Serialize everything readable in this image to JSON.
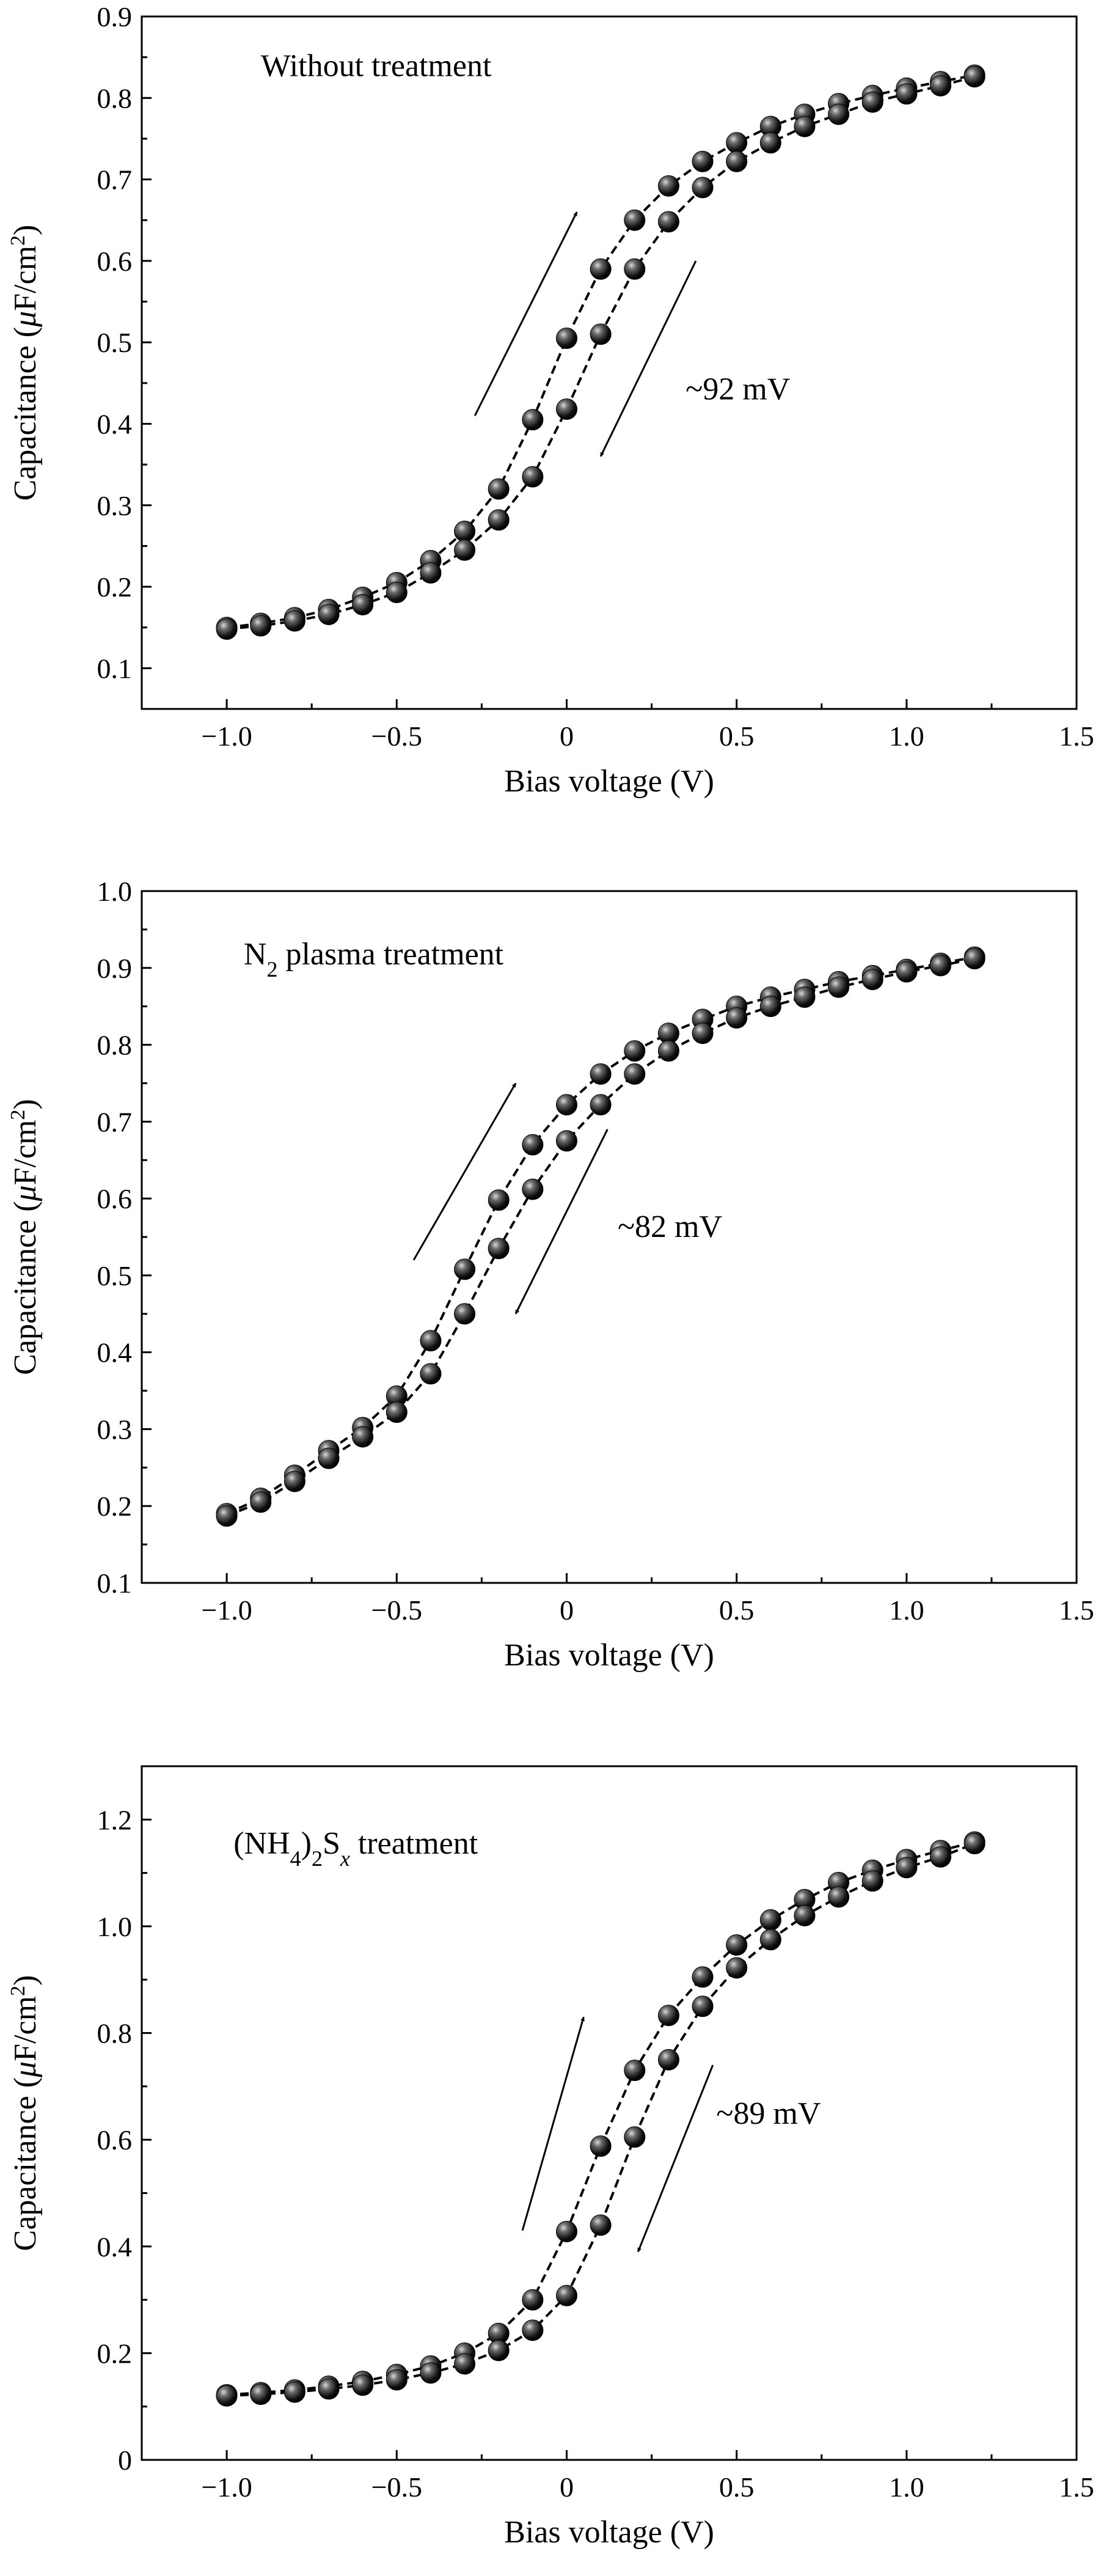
{
  "chart_data": [
    {
      "type": "scatter",
      "title": "Without treatment",
      "xlabel": "Bias voltage (V)",
      "ylabel": "Capacitance (μF/cm²)",
      "xlim": [
        -1.25,
        1.5
      ],
      "ylim": [
        0.05,
        0.9
      ],
      "xticks": [
        -1.0,
        -0.5,
        0,
        0.5,
        1.0,
        1.5
      ],
      "xtick_labels": [
        "−1.0",
        "−0.5",
        "0",
        "0.5",
        "1.0",
        "1.5"
      ],
      "yticks": [
        0.1,
        0.2,
        0.3,
        0.4,
        0.5,
        0.6,
        0.7,
        0.8,
        0.9
      ],
      "ytick_labels": [
        "0.1",
        "0.2",
        "0.3",
        "0.4",
        "0.5",
        "0.6",
        "0.7",
        "0.8",
        "0.9"
      ],
      "annotation": "~92 mV",
      "series": [
        {
          "direction": "forward",
          "x": [
            -1.0,
            -0.9,
            -0.8,
            -0.7,
            -0.6,
            -0.5,
            -0.4,
            -0.3,
            -0.2,
            -0.1,
            0.0,
            0.1,
            0.2,
            0.3,
            0.4,
            0.5,
            0.6,
            0.7,
            0.8,
            0.9,
            1.0,
            1.1,
            1.2
          ],
          "y": [
            0.15,
            0.155,
            0.162,
            0.172,
            0.187,
            0.205,
            0.232,
            0.268,
            0.32,
            0.405,
            0.505,
            0.59,
            0.65,
            0.692,
            0.722,
            0.745,
            0.765,
            0.78,
            0.793,
            0.803,
            0.812,
            0.82,
            0.828
          ]
        },
        {
          "direction": "reverse",
          "x": [
            -1.0,
            -0.9,
            -0.8,
            -0.7,
            -0.6,
            -0.5,
            -0.4,
            -0.3,
            -0.2,
            -0.1,
            0.0,
            0.1,
            0.2,
            0.3,
            0.4,
            0.5,
            0.6,
            0.7,
            0.8,
            0.9,
            1.0,
            1.1,
            1.2
          ],
          "y": [
            0.148,
            0.152,
            0.158,
            0.166,
            0.178,
            0.193,
            0.217,
            0.245,
            0.282,
            0.335,
            0.418,
            0.51,
            0.59,
            0.648,
            0.69,
            0.722,
            0.745,
            0.765,
            0.78,
            0.795,
            0.805,
            0.815,
            0.826
          ]
        }
      ]
    },
    {
      "type": "scatter",
      "title": "N2 plasma treatment",
      "xlabel": "Bias voltage (V)",
      "ylabel": "Capacitance (μF/cm²)",
      "xlim": [
        -1.25,
        1.5
      ],
      "ylim": [
        0.1,
        1.0
      ],
      "xticks": [
        -1.0,
        -0.5,
        0,
        0.5,
        1.0,
        1.5
      ],
      "xtick_labels": [
        "−1.0",
        "−0.5",
        "0",
        "0.5",
        "1.0",
        "1.5"
      ],
      "yticks": [
        0.1,
        0.2,
        0.3,
        0.4,
        0.5,
        0.6,
        0.7,
        0.8,
        0.9,
        1.0
      ],
      "ytick_labels": [
        "0.1",
        "0.2",
        "0.3",
        "0.4",
        "0.5",
        "0.6",
        "0.7",
        "0.8",
        "0.9",
        "1.0"
      ],
      "annotation": "~82 mV",
      "series": [
        {
          "direction": "forward",
          "x": [
            -1.0,
            -0.9,
            -0.8,
            -0.7,
            -0.6,
            -0.5,
            -0.4,
            -0.3,
            -0.2,
            -0.1,
            0.0,
            0.1,
            0.2,
            0.3,
            0.4,
            0.5,
            0.6,
            0.7,
            0.8,
            0.9,
            1.0,
            1.1,
            1.2
          ],
          "y": [
            0.19,
            0.21,
            0.24,
            0.272,
            0.302,
            0.343,
            0.415,
            0.508,
            0.598,
            0.67,
            0.722,
            0.762,
            0.792,
            0.815,
            0.833,
            0.85,
            0.862,
            0.872,
            0.882,
            0.89,
            0.898,
            0.906,
            0.914
          ]
        },
        {
          "direction": "reverse",
          "x": [
            -1.0,
            -0.9,
            -0.8,
            -0.7,
            -0.6,
            -0.5,
            -0.4,
            -0.3,
            -0.2,
            -0.1,
            0.0,
            0.1,
            0.2,
            0.3,
            0.4,
            0.5,
            0.6,
            0.7,
            0.8,
            0.9,
            1.0,
            1.1,
            1.2
          ],
          "y": [
            0.187,
            0.205,
            0.232,
            0.262,
            0.29,
            0.322,
            0.372,
            0.45,
            0.535,
            0.612,
            0.675,
            0.722,
            0.762,
            0.792,
            0.815,
            0.835,
            0.85,
            0.862,
            0.875,
            0.885,
            0.895,
            0.903,
            0.912
          ]
        }
      ]
    },
    {
      "type": "scatter",
      "title": "(NH4)2Sx treatment",
      "xlabel": "Bias voltage (V)",
      "ylabel": "Capacitance (μF/cm²)",
      "xlim": [
        -1.25,
        1.5
      ],
      "ylim": [
        0.0,
        1.3
      ],
      "xticks": [
        -1.0,
        -0.5,
        0,
        0.5,
        1.0,
        1.5
      ],
      "xtick_labels": [
        "−1.0",
        "−0.5",
        "0",
        "0.5",
        "1.0",
        "1.5"
      ],
      "yticks": [
        0.0,
        0.2,
        0.4,
        0.6,
        0.8,
        1.0,
        1.2
      ],
      "ytick_labels": [
        "0",
        "0.2",
        "0.4",
        "0.6",
        "0.8",
        "1.0",
        "1.2"
      ],
      "annotation": "~89 mV",
      "series": [
        {
          "direction": "forward",
          "x": [
            -1.0,
            -0.9,
            -0.8,
            -0.7,
            -0.6,
            -0.5,
            -0.4,
            -0.3,
            -0.2,
            -0.1,
            0.0,
            0.1,
            0.2,
            0.3,
            0.4,
            0.5,
            0.6,
            0.7,
            0.8,
            0.9,
            1.0,
            1.1,
            1.2
          ],
          "y": [
            0.122,
            0.126,
            0.131,
            0.138,
            0.147,
            0.16,
            0.176,
            0.2,
            0.237,
            0.3,
            0.428,
            0.588,
            0.73,
            0.833,
            0.905,
            0.965,
            1.012,
            1.05,
            1.082,
            1.105,
            1.125,
            1.142,
            1.158
          ]
        },
        {
          "direction": "reverse",
          "x": [
            -1.0,
            -0.9,
            -0.8,
            -0.7,
            -0.6,
            -0.5,
            -0.4,
            -0.3,
            -0.2,
            -0.1,
            0.0,
            0.1,
            0.2,
            0.3,
            0.4,
            0.5,
            0.6,
            0.7,
            0.8,
            0.9,
            1.0,
            1.1,
            1.2
          ],
          "y": [
            0.12,
            0.123,
            0.127,
            0.133,
            0.14,
            0.15,
            0.163,
            0.18,
            0.205,
            0.243,
            0.308,
            0.44,
            0.605,
            0.75,
            0.85,
            0.922,
            0.975,
            1.02,
            1.055,
            1.085,
            1.11,
            1.13,
            1.155
          ]
        }
      ]
    }
  ]
}
